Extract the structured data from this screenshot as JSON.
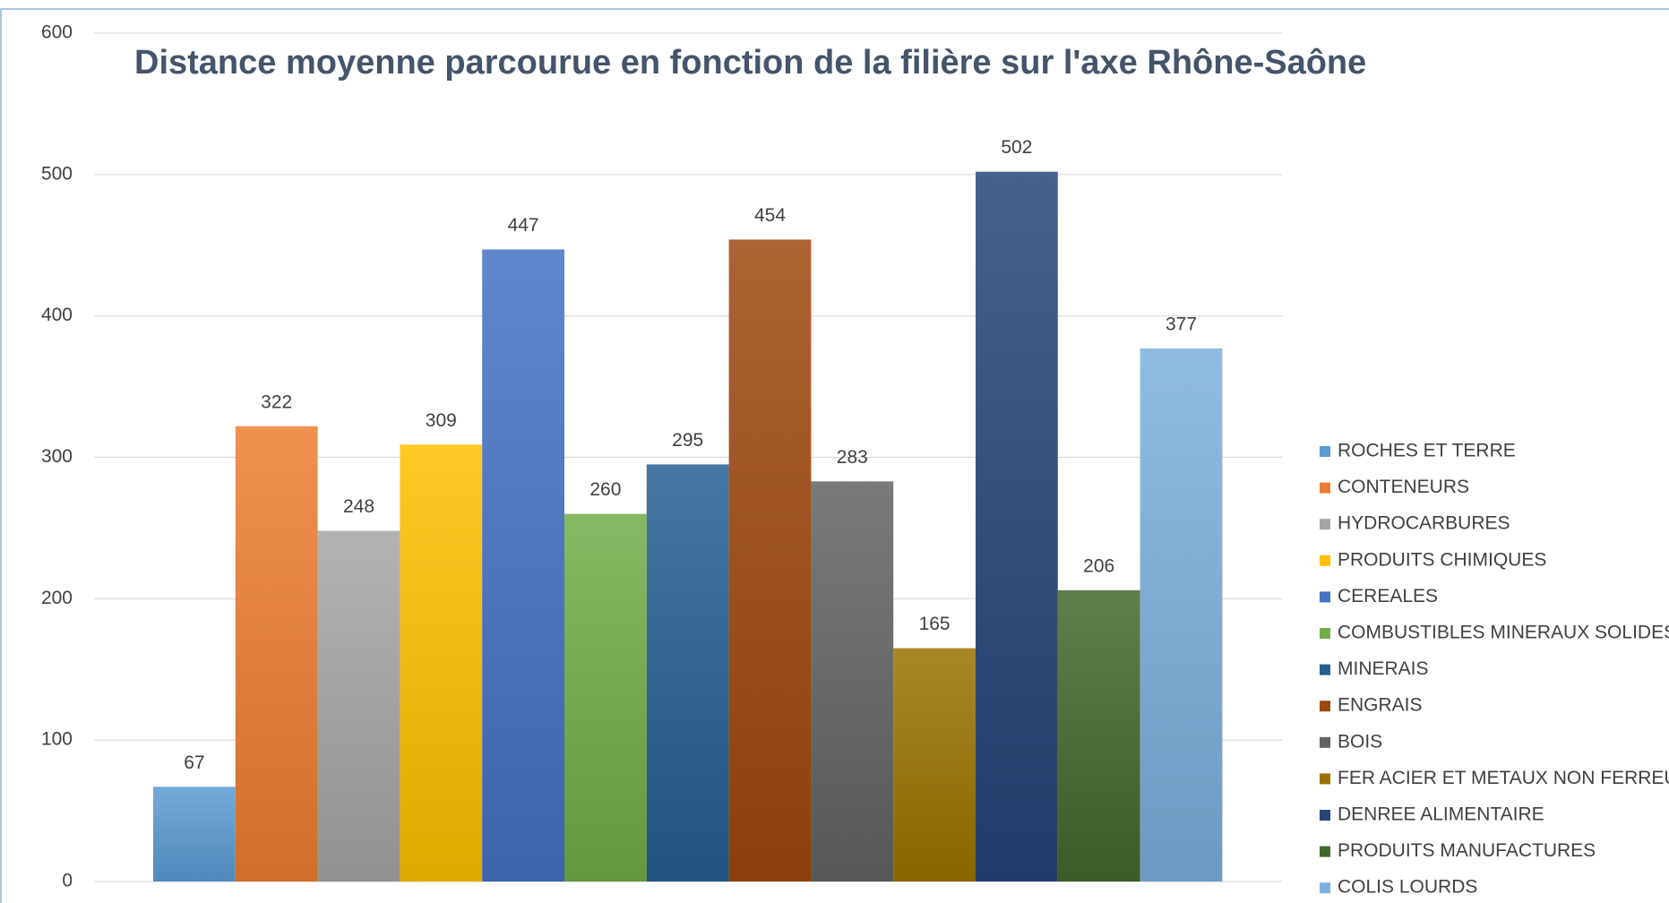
{
  "chart_data": {
    "type": "bar",
    "title": "Distance moyenne parcourue en fonction de la filière sur l'axe Rhône-Saône",
    "categories": [
      null
    ],
    "series": [
      {
        "name": "ROCHES ET TERRE",
        "color": "#5b9bd5",
        "values": [
          67
        ]
      },
      {
        "name": "CONTENEURS",
        "color": "#ed7d31",
        "values": [
          322
        ]
      },
      {
        "name": "HYDROCARBURES",
        "color": "#a5a5a5",
        "values": [
          248
        ]
      },
      {
        "name": "PRODUITS CHIMIQUES",
        "color": "#ffc000",
        "values": [
          309
        ]
      },
      {
        "name": "CEREALES",
        "color": "#4472c4",
        "values": [
          447
        ]
      },
      {
        "name": "COMBUSTIBLES MINERAUX SOLIDES",
        "color": "#70ad47",
        "values": [
          260
        ]
      },
      {
        "name": "MINERAIS",
        "color": "#255e91",
        "values": [
          295
        ]
      },
      {
        "name": "ENGRAIS",
        "color": "#9e480e",
        "values": [
          454
        ]
      },
      {
        "name": "BOIS",
        "color": "#636363",
        "values": [
          283
        ]
      },
      {
        "name": "FER ACIER ET METAUX NON FERREUX",
        "color": "#997300",
        "values": [
          165
        ]
      },
      {
        "name": "DENREE ALIMENTAIRE",
        "color": "#264478",
        "values": [
          502
        ]
      },
      {
        "name": "PRODUITS MANUFACTURES",
        "color": "#43682b",
        "values": [
          206
        ]
      },
      {
        "name": "COLIS LOURDS",
        "color": "#7cafdd",
        "values": [
          377
        ]
      }
    ],
    "ylim": [
      0,
      600
    ],
    "yticks": [
      0,
      100,
      200,
      300,
      400,
      500,
      600
    ],
    "grid": true,
    "legend": "right"
  }
}
